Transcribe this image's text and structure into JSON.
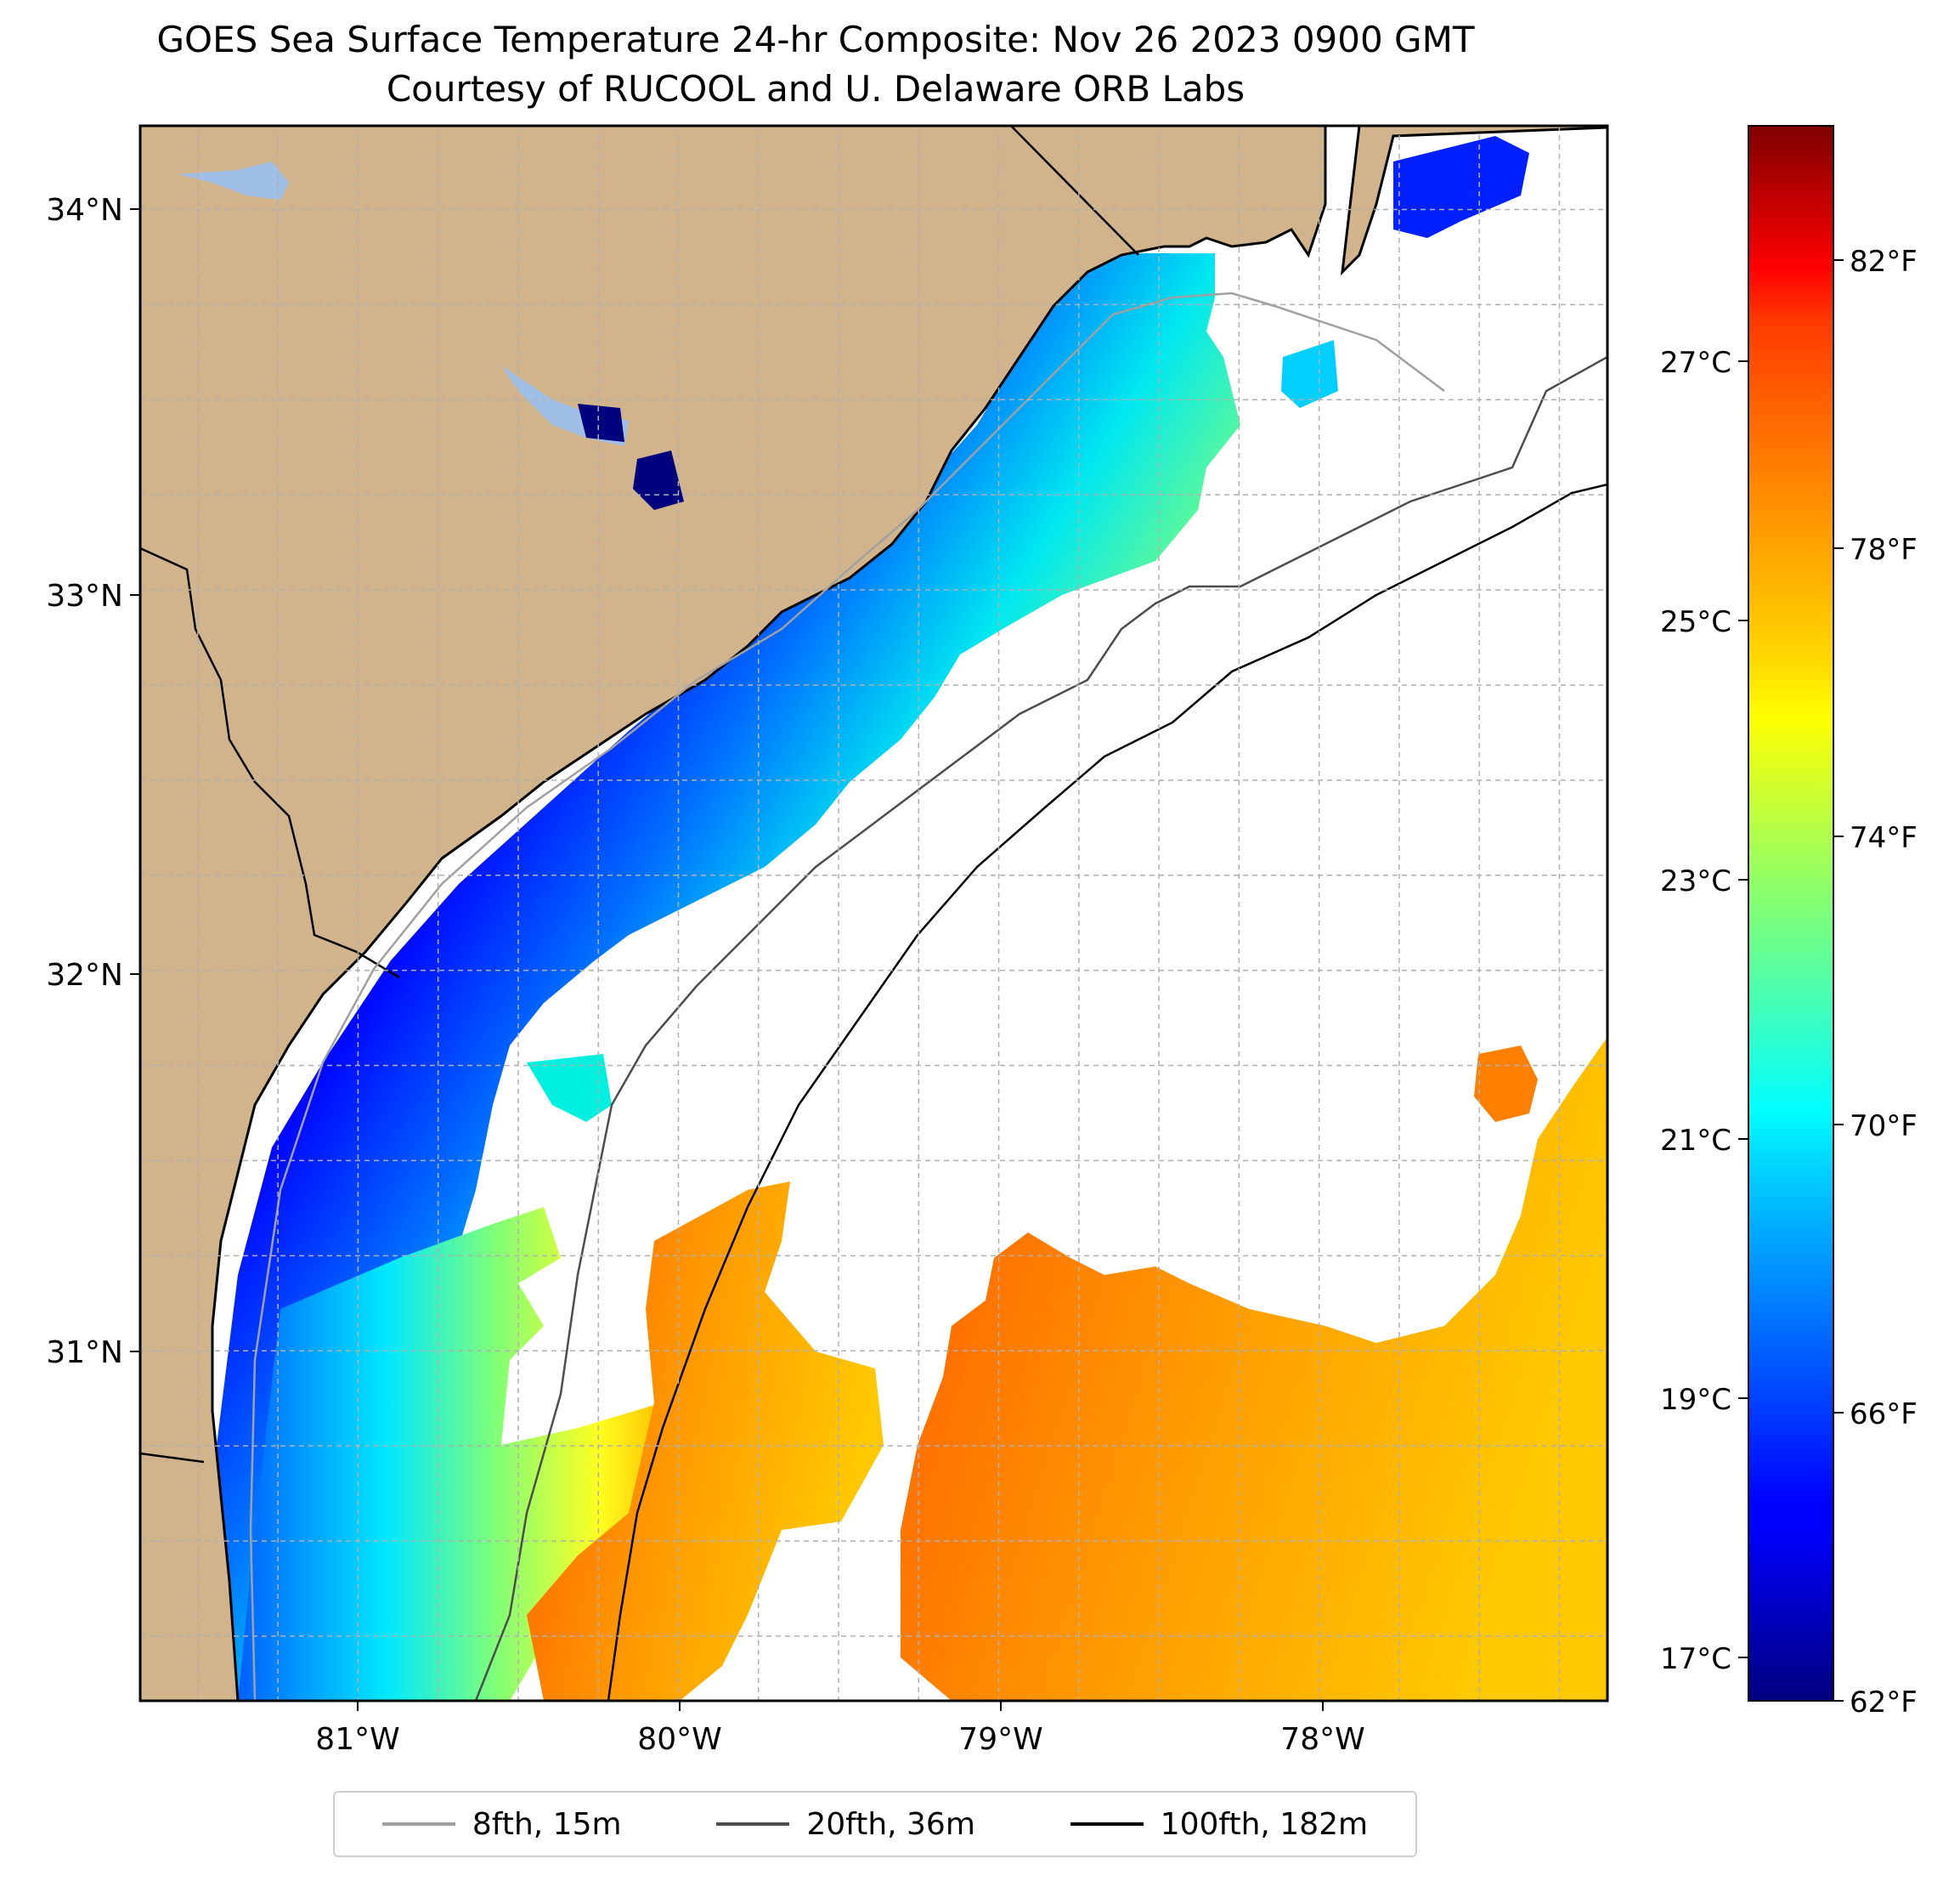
{
  "title": {
    "line1": "GOES Sea Surface Temperature 24-hr Composite: Nov 26 2023 0900 GMT",
    "line2": "Courtesy of RUCOOL and U. Delaware ORB Labs"
  },
  "map": {
    "lon_range": [
      -81.68,
      -77.1
    ],
    "lat_range": [
      30.08,
      34.22
    ],
    "lat_ticks": [
      {
        "value": 34,
        "label": "34°N"
      },
      {
        "value": 33,
        "label": "33°N"
      },
      {
        "value": 32,
        "label": "32°N"
      },
      {
        "value": 31,
        "label": "31°N"
      }
    ],
    "lon_ticks": [
      {
        "value": -81,
        "label": "81°W"
      },
      {
        "value": -80,
        "label": "80°W"
      },
      {
        "value": -79,
        "label": "79°W"
      },
      {
        "value": -78,
        "label": "78°W"
      }
    ],
    "gridlines": true,
    "land_color": "#d2b48c",
    "lake_color": "#9fbfe6"
  },
  "colorbar": {
    "colormap": "jet",
    "fahrenheit_range": [
      62,
      84
    ],
    "fahrenheit_ticks": [
      {
        "value": 62,
        "label": "62°F"
      },
      {
        "value": 66,
        "label": "66°F"
      },
      {
        "value": 70,
        "label": "70°F"
      },
      {
        "value": 74,
        "label": "74°F"
      },
      {
        "value": 78,
        "label": "78°F"
      },
      {
        "value": 82,
        "label": "82°F"
      }
    ],
    "celsius_ticks": [
      {
        "value": 17,
        "label": "17°C"
      },
      {
        "value": 19,
        "label": "19°C"
      },
      {
        "value": 21,
        "label": "21°C"
      },
      {
        "value": 23,
        "label": "23°C"
      },
      {
        "value": 25,
        "label": "25°C"
      },
      {
        "value": 27,
        "label": "27°C"
      }
    ]
  },
  "legend": {
    "placement": "bottom-center",
    "items": [
      {
        "label": "8fth, 15m",
        "color": "#a0a0a0"
      },
      {
        "label": "20fth, 36m",
        "color": "#4d4d4d"
      },
      {
        "label": "100fth, 182m",
        "color": "#000000"
      }
    ]
  }
}
